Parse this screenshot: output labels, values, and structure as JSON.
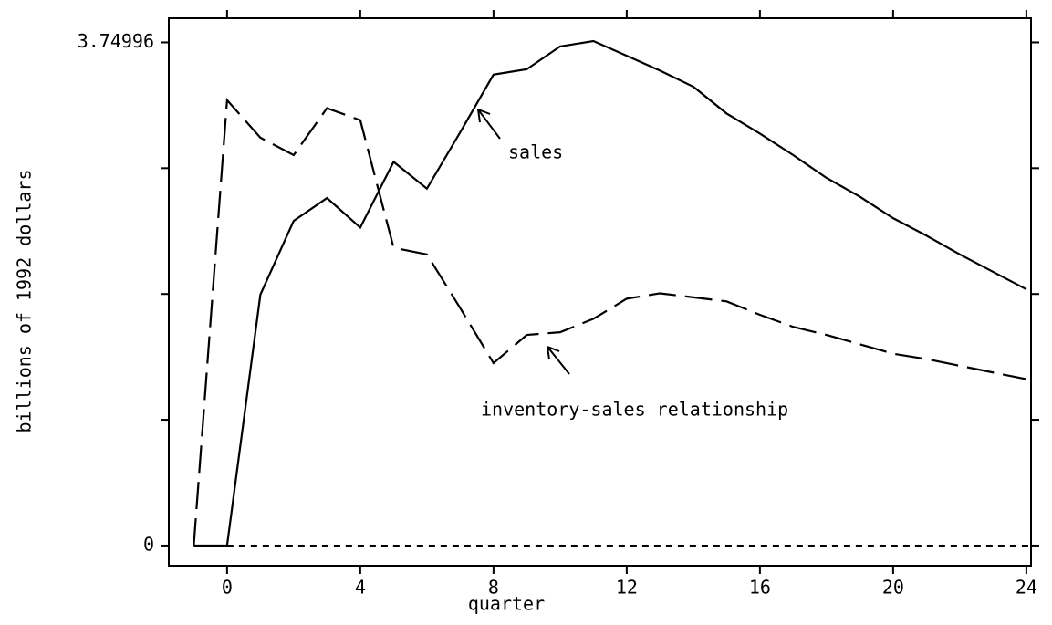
{
  "chart_data": {
    "type": "line",
    "xlabel": "quarter",
    "ylabel": "billions of 1992 dollars",
    "x": [
      -1,
      0,
      1,
      2,
      3,
      4,
      5,
      6,
      7,
      8,
      9,
      10,
      11,
      12,
      13,
      14,
      15,
      16,
      17,
      18,
      19,
      20,
      21,
      22,
      23,
      24
    ],
    "series": [
      {
        "name": "sales",
        "color": "#000000",
        "style": "solid",
        "values": [
          0,
          0,
          1.87,
          2.42,
          2.59,
          2.37,
          2.86,
          2.66,
          3.08,
          3.51,
          3.55,
          3.72,
          3.76,
          3.65,
          3.54,
          3.42,
          3.22,
          3.07,
          2.91,
          2.74,
          2.6,
          2.44,
          2.31,
          2.17,
          2.04,
          1.91
        ]
      },
      {
        "name": "inventory-sales relationship",
        "color": "#000000",
        "style": "dashed",
        "values": [
          0,
          3.32,
          3.04,
          2.91,
          3.26,
          3.17,
          2.22,
          2.17,
          1.77,
          1.36,
          1.57,
          1.59,
          1.69,
          1.84,
          1.88,
          1.85,
          1.82,
          1.72,
          1.63,
          1.57,
          1.5,
          1.43,
          1.39,
          1.34,
          1.29,
          1.24
        ]
      }
    ],
    "xlim": [
      -1.75,
      24.14
    ],
    "xticks": [
      0,
      4,
      8,
      12,
      16,
      20,
      24
    ],
    "ylim": [
      -0.15,
      3.93
    ],
    "yticks": [
      0,
      3.74996
    ],
    "yminor_ticks": [
      0.9375,
      1.875,
      2.8125
    ],
    "zero_line": true
  }
}
